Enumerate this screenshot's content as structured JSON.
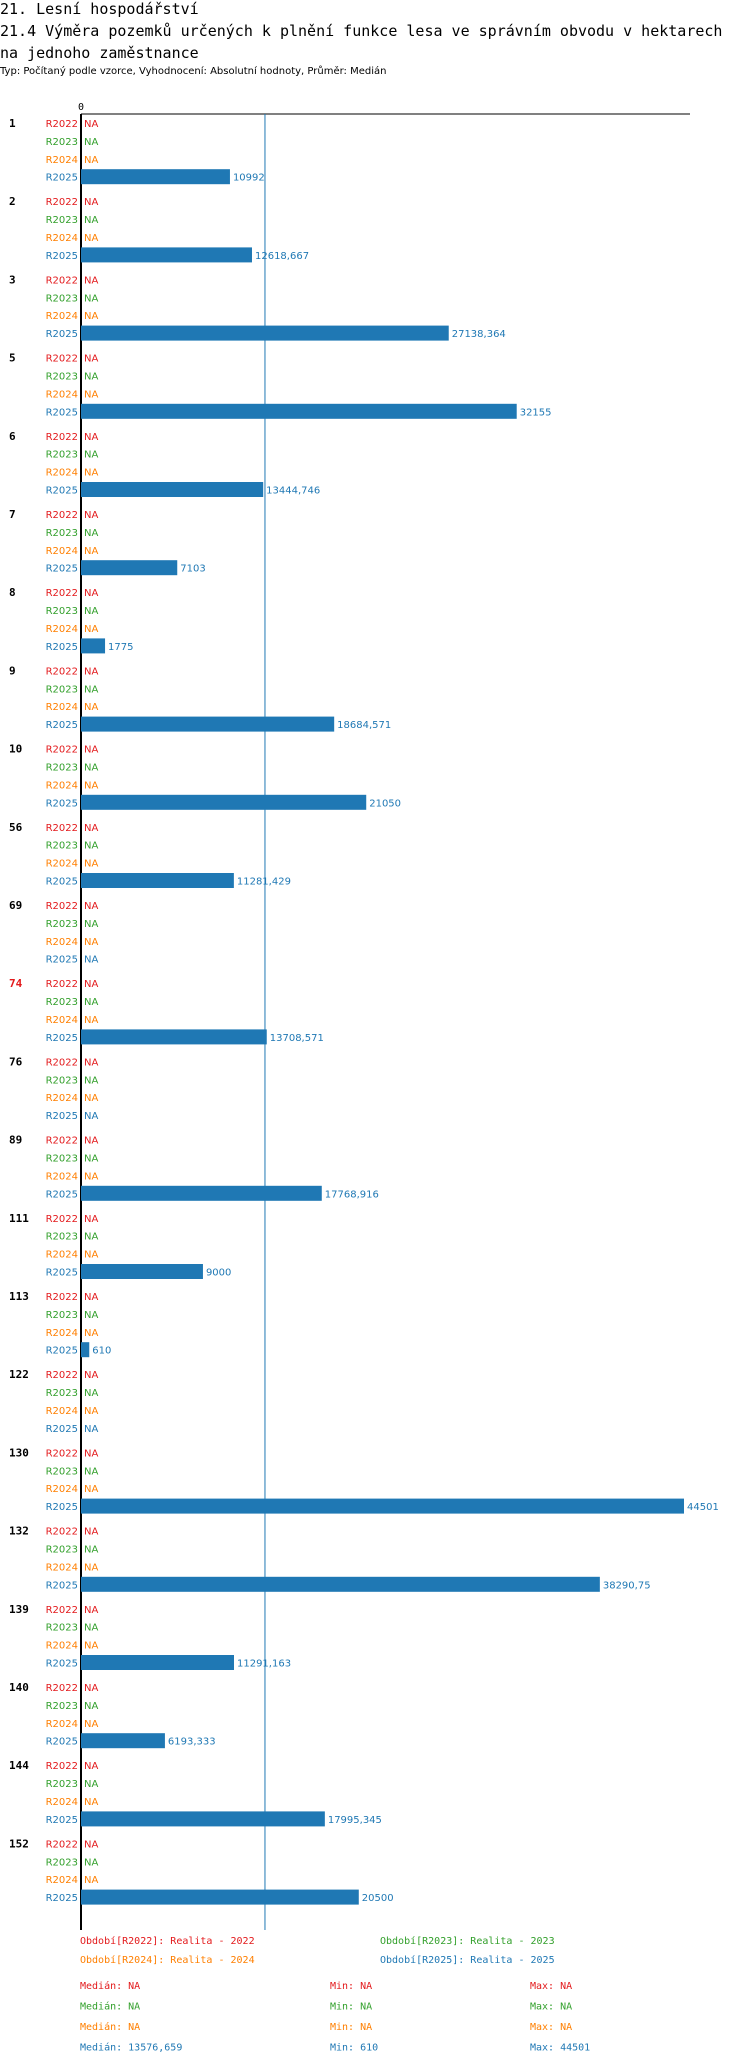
{
  "page": {
    "title_line1": "21. Lesní hospodářství",
    "title_line2": "21.4 Výměra pozemků určených k plnění funkce lesa ve správním obvodu v hektarech",
    "title_line3": "na jednoho zaměstnance",
    "subtitle": "Typ: Počítaný podle vzorce, Vyhodnocení: Absolutní hodnoty, Průměr: Medián"
  },
  "colors": {
    "R2022": "#e31a1c",
    "R2023": "#33a02c",
    "R2024": "#ff7f00",
    "R2025": "#1f78b4",
    "highlight_group": "#e31a1c",
    "axis": "#000000"
  },
  "chart_data": {
    "type": "bar",
    "orientation": "horizontal",
    "x_axis_tick": "0",
    "xlim": [
      0,
      44501
    ],
    "reference_line": {
      "value": 13576.659
    },
    "series_order": [
      "R2022",
      "R2023",
      "R2024",
      "R2025"
    ],
    "na_label": "NA",
    "groups": [
      {
        "label": "1",
        "values": {
          "R2025": {
            "v": 10992,
            "t": "10992"
          }
        }
      },
      {
        "label": "2",
        "values": {
          "R2025": {
            "v": 12618.667,
            "t": "12618,667"
          }
        }
      },
      {
        "label": "3",
        "values": {
          "R2025": {
            "v": 27138.364,
            "t": "27138,364"
          }
        }
      },
      {
        "label": "5",
        "values": {
          "R2025": {
            "v": 32155,
            "t": "32155"
          }
        }
      },
      {
        "label": "6",
        "values": {
          "R2025": {
            "v": 13444.746,
            "t": "13444,746"
          }
        }
      },
      {
        "label": "7",
        "values": {
          "R2025": {
            "v": 7103,
            "t": "7103"
          }
        }
      },
      {
        "label": "8",
        "values": {
          "R2025": {
            "v": 1775,
            "t": "1775"
          }
        }
      },
      {
        "label": "9",
        "values": {
          "R2025": {
            "v": 18684.571,
            "t": "18684,571"
          }
        }
      },
      {
        "label": "10",
        "values": {
          "R2025": {
            "v": 21050,
            "t": "21050"
          }
        }
      },
      {
        "label": "56",
        "values": {
          "R2025": {
            "v": 11281.429,
            "t": "11281,429"
          }
        }
      },
      {
        "label": "69",
        "values": {}
      },
      {
        "label": "74",
        "highlight": true,
        "values": {
          "R2025": {
            "v": 13708.571,
            "t": "13708,571"
          }
        }
      },
      {
        "label": "76",
        "values": {}
      },
      {
        "label": "89",
        "values": {
          "R2025": {
            "v": 17768.916,
            "t": "17768,916"
          }
        }
      },
      {
        "label": "111",
        "values": {
          "R2025": {
            "v": 9000,
            "t": "9000"
          }
        }
      },
      {
        "label": "113",
        "values": {
          "R2025": {
            "v": 610,
            "t": "610"
          }
        }
      },
      {
        "label": "122",
        "values": {}
      },
      {
        "label": "130",
        "values": {
          "R2025": {
            "v": 44501,
            "t": "44501"
          }
        }
      },
      {
        "label": "132",
        "values": {
          "R2025": {
            "v": 38290.75,
            "t": "38290,75"
          }
        }
      },
      {
        "label": "139",
        "values": {
          "R2025": {
            "v": 11291.163,
            "t": "11291,163"
          }
        }
      },
      {
        "label": "140",
        "values": {
          "R2025": {
            "v": 6193.333,
            "t": "6193,333"
          }
        }
      },
      {
        "label": "144",
        "values": {
          "R2025": {
            "v": 17995.345,
            "t": "17995,345"
          }
        }
      },
      {
        "label": "152",
        "values": {
          "R2025": {
            "v": 20500,
            "t": "20500"
          }
        }
      }
    ],
    "legend": [
      {
        "series": "R2022",
        "text": "Období[R2022]: Realita - 2022"
      },
      {
        "series": "R2023",
        "text": "Období[R2023]: Realita - 2023"
      },
      {
        "series": "R2024",
        "text": "Období[R2024]: Realita - 2024"
      },
      {
        "series": "R2025",
        "text": "Období[R2025]: Realita - 2025"
      }
    ],
    "stats": [
      {
        "series": "R2022",
        "median": "Medián: NA",
        "min": "Min: NA",
        "max": "Max: NA"
      },
      {
        "series": "R2023",
        "median": "Medián: NA",
        "min": "Min: NA",
        "max": "Max: NA"
      },
      {
        "series": "R2024",
        "median": "Medián: NA",
        "min": "Min: NA",
        "max": "Max: NA"
      },
      {
        "series": "R2025",
        "median": "Medián: 13576,659",
        "min": "Min: 610",
        "max": "Max: 44501"
      }
    ]
  }
}
